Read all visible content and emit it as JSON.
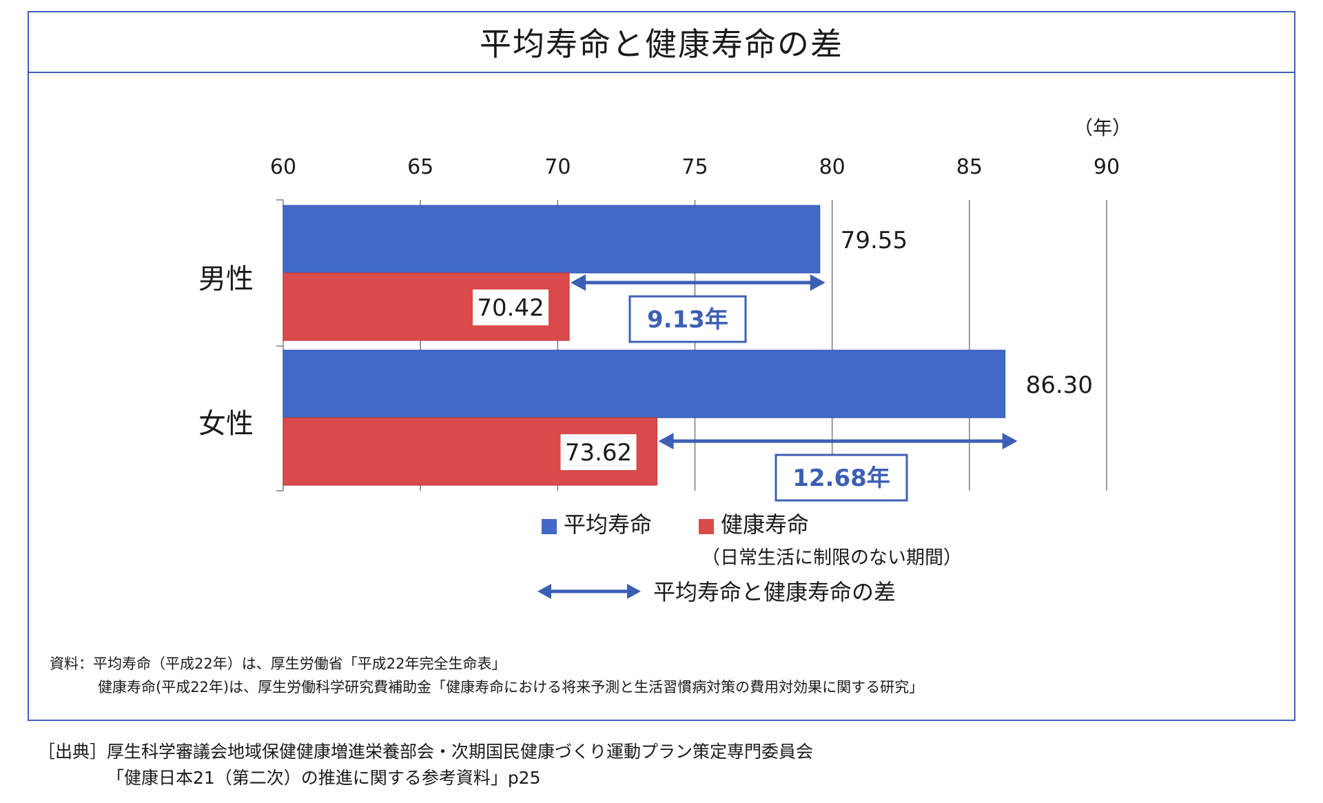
{
  "title": "平均寿命と健康寿命の差",
  "chart_data": {
    "type": "bar",
    "orientation": "horizontal",
    "unit_label": "（年）",
    "x_ticks": [
      60,
      65,
      70,
      75,
      80,
      85,
      90
    ],
    "xlim": [
      60,
      90
    ],
    "categories": [
      "男性",
      "女性"
    ],
    "series": [
      {
        "name": "平均寿命",
        "color": "#4169c8",
        "values": [
          79.55,
          86.3
        ],
        "labels": [
          "79.55",
          "86.30"
        ]
      },
      {
        "name": "健康寿命",
        "color": "#d94a4a",
        "values": [
          70.42,
          73.62
        ],
        "labels": [
          "70.42",
          "73.62"
        ]
      }
    ],
    "differences": [
      {
        "label": "9.13年",
        "from": 70.42,
        "to": 79.55
      },
      {
        "label": "12.68年",
        "from": 73.62,
        "to": 86.3
      }
    ],
    "grid": true,
    "legend": {
      "average_label": "平均寿命",
      "healthy_label": "健康寿命",
      "healthy_sub": "（日常生活に制限のない期間）",
      "diff_label": "平均寿命と健康寿命の差"
    },
    "accent": "#3c5fb6"
  },
  "notes": {
    "line1": "資料：平均寿命（平成22年）は、厚生労働省「平成22年完全生命表」",
    "line2": "健康寿命(平成22年)は、厚生労働科学研究費補助金「健康寿命における将来予測と生活習慣病対策の費用対効果に関する研究」"
  },
  "source": {
    "line1": "［出典］厚生科学審議会地域保健健康増進栄養部会・次期国民健康づくり運動プラン策定専門委員会",
    "line2": "「健康日本21（第二次）の推進に関する参考資料」p25"
  }
}
